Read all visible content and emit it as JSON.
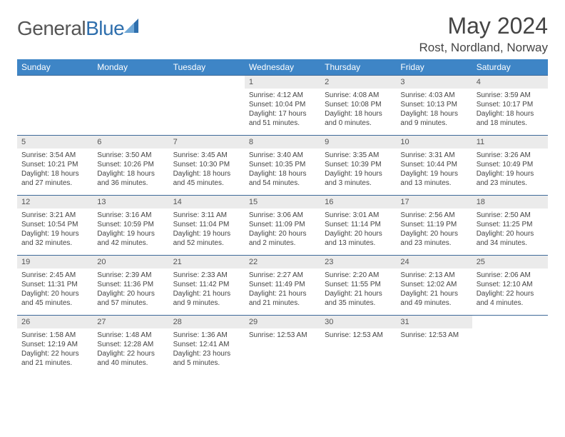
{
  "brand": {
    "name_part1": "General",
    "name_part2": "Blue"
  },
  "title": "May 2024",
  "location": "Rost, Nordland, Norway",
  "colors": {
    "header_bg": "#3e85c6",
    "header_text": "#ffffff",
    "row_border": "#3e6a99",
    "daynum_bg": "#ebebeb",
    "text": "#444444",
    "brand_gray": "#555555",
    "brand_blue": "#2f6fad"
  },
  "weekdays": [
    "Sunday",
    "Monday",
    "Tuesday",
    "Wednesday",
    "Thursday",
    "Friday",
    "Saturday"
  ],
  "grid": [
    [
      {
        "day": "",
        "lines": []
      },
      {
        "day": "",
        "lines": []
      },
      {
        "day": "",
        "lines": []
      },
      {
        "day": "1",
        "lines": [
          "Sunrise: 4:12 AM",
          "Sunset: 10:04 PM",
          "Daylight: 17 hours",
          "and 51 minutes."
        ]
      },
      {
        "day": "2",
        "lines": [
          "Sunrise: 4:08 AM",
          "Sunset: 10:08 PM",
          "Daylight: 18 hours",
          "and 0 minutes."
        ]
      },
      {
        "day": "3",
        "lines": [
          "Sunrise: 4:03 AM",
          "Sunset: 10:13 PM",
          "Daylight: 18 hours",
          "and 9 minutes."
        ]
      },
      {
        "day": "4",
        "lines": [
          "Sunrise: 3:59 AM",
          "Sunset: 10:17 PM",
          "Daylight: 18 hours",
          "and 18 minutes."
        ]
      }
    ],
    [
      {
        "day": "5",
        "lines": [
          "Sunrise: 3:54 AM",
          "Sunset: 10:21 PM",
          "Daylight: 18 hours",
          "and 27 minutes."
        ]
      },
      {
        "day": "6",
        "lines": [
          "Sunrise: 3:50 AM",
          "Sunset: 10:26 PM",
          "Daylight: 18 hours",
          "and 36 minutes."
        ]
      },
      {
        "day": "7",
        "lines": [
          "Sunrise: 3:45 AM",
          "Sunset: 10:30 PM",
          "Daylight: 18 hours",
          "and 45 minutes."
        ]
      },
      {
        "day": "8",
        "lines": [
          "Sunrise: 3:40 AM",
          "Sunset: 10:35 PM",
          "Daylight: 18 hours",
          "and 54 minutes."
        ]
      },
      {
        "day": "9",
        "lines": [
          "Sunrise: 3:35 AM",
          "Sunset: 10:39 PM",
          "Daylight: 19 hours",
          "and 3 minutes."
        ]
      },
      {
        "day": "10",
        "lines": [
          "Sunrise: 3:31 AM",
          "Sunset: 10:44 PM",
          "Daylight: 19 hours",
          "and 13 minutes."
        ]
      },
      {
        "day": "11",
        "lines": [
          "Sunrise: 3:26 AM",
          "Sunset: 10:49 PM",
          "Daylight: 19 hours",
          "and 23 minutes."
        ]
      }
    ],
    [
      {
        "day": "12",
        "lines": [
          "Sunrise: 3:21 AM",
          "Sunset: 10:54 PM",
          "Daylight: 19 hours",
          "and 32 minutes."
        ]
      },
      {
        "day": "13",
        "lines": [
          "Sunrise: 3:16 AM",
          "Sunset: 10:59 PM",
          "Daylight: 19 hours",
          "and 42 minutes."
        ]
      },
      {
        "day": "14",
        "lines": [
          "Sunrise: 3:11 AM",
          "Sunset: 11:04 PM",
          "Daylight: 19 hours",
          "and 52 minutes."
        ]
      },
      {
        "day": "15",
        "lines": [
          "Sunrise: 3:06 AM",
          "Sunset: 11:09 PM",
          "Daylight: 20 hours",
          "and 2 minutes."
        ]
      },
      {
        "day": "16",
        "lines": [
          "Sunrise: 3:01 AM",
          "Sunset: 11:14 PM",
          "Daylight: 20 hours",
          "and 13 minutes."
        ]
      },
      {
        "day": "17",
        "lines": [
          "Sunrise: 2:56 AM",
          "Sunset: 11:19 PM",
          "Daylight: 20 hours",
          "and 23 minutes."
        ]
      },
      {
        "day": "18",
        "lines": [
          "Sunrise: 2:50 AM",
          "Sunset: 11:25 PM",
          "Daylight: 20 hours",
          "and 34 minutes."
        ]
      }
    ],
    [
      {
        "day": "19",
        "lines": [
          "Sunrise: 2:45 AM",
          "Sunset: 11:31 PM",
          "Daylight: 20 hours",
          "and 45 minutes."
        ]
      },
      {
        "day": "20",
        "lines": [
          "Sunrise: 2:39 AM",
          "Sunset: 11:36 PM",
          "Daylight: 20 hours",
          "and 57 minutes."
        ]
      },
      {
        "day": "21",
        "lines": [
          "Sunrise: 2:33 AM",
          "Sunset: 11:42 PM",
          "Daylight: 21 hours",
          "and 9 minutes."
        ]
      },
      {
        "day": "22",
        "lines": [
          "Sunrise: 2:27 AM",
          "Sunset: 11:49 PM",
          "Daylight: 21 hours",
          "and 21 minutes."
        ]
      },
      {
        "day": "23",
        "lines": [
          "Sunrise: 2:20 AM",
          "Sunset: 11:55 PM",
          "Daylight: 21 hours",
          "and 35 minutes."
        ]
      },
      {
        "day": "24",
        "lines": [
          "Sunrise: 2:13 AM",
          "Sunset: 12:02 AM",
          "Daylight: 21 hours",
          "and 49 minutes."
        ]
      },
      {
        "day": "25",
        "lines": [
          "Sunrise: 2:06 AM",
          "Sunset: 12:10 AM",
          "Daylight: 22 hours",
          "and 4 minutes."
        ]
      }
    ],
    [
      {
        "day": "26",
        "lines": [
          "Sunrise: 1:58 AM",
          "Sunset: 12:19 AM",
          "Daylight: 22 hours",
          "and 21 minutes."
        ]
      },
      {
        "day": "27",
        "lines": [
          "Sunrise: 1:48 AM",
          "Sunset: 12:28 AM",
          "Daylight: 22 hours",
          "and 40 minutes."
        ]
      },
      {
        "day": "28",
        "lines": [
          "Sunrise: 1:36 AM",
          "Sunset: 12:41 AM",
          "Daylight: 23 hours",
          "and 5 minutes."
        ]
      },
      {
        "day": "29",
        "lines": [
          "Sunrise: 12:53 AM"
        ]
      },
      {
        "day": "30",
        "lines": [
          "Sunrise: 12:53 AM"
        ]
      },
      {
        "day": "31",
        "lines": [
          "Sunrise: 12:53 AM"
        ]
      },
      {
        "day": "",
        "lines": []
      }
    ]
  ]
}
